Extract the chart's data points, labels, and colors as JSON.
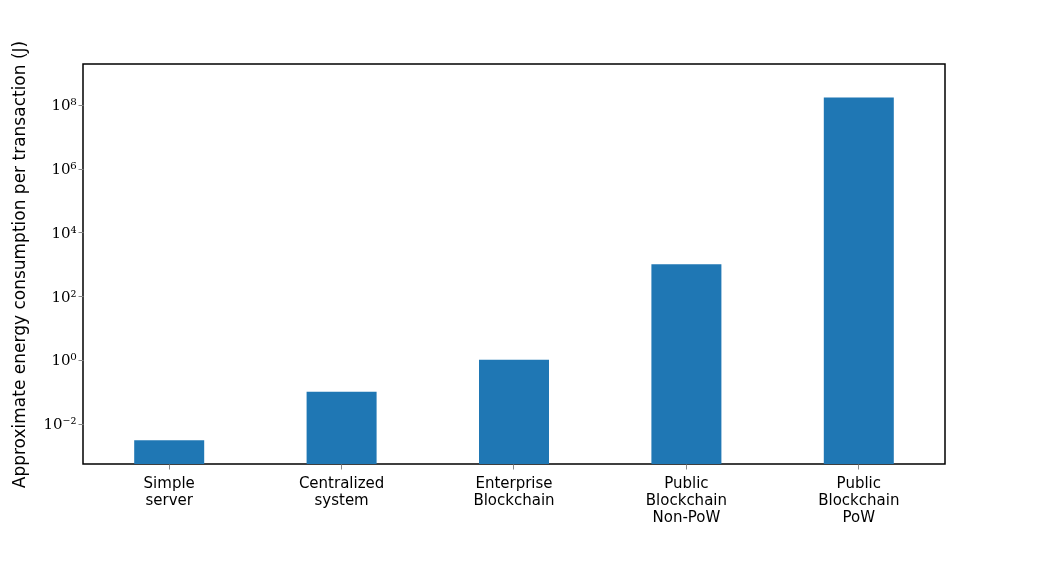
{
  "chart_data": {
    "type": "bar",
    "ylabel": "Approximate energy consumption per transaction (J)",
    "categories": [
      "Simple server",
      "Centralized system",
      "Enterprise Blockchain",
      "Public Blockchain Non-PoW",
      "Public Blockchain PoW"
    ],
    "values": [
      0.003,
      0.1,
      1,
      1000,
      170000000
    ],
    "color": "#1f77b4",
    "log": true,
    "ylim": [
      0.00054,
      1900000000
    ],
    "yticks": [
      {
        "value": 0.01,
        "label": "10⁻²"
      },
      {
        "value": 1,
        "label": "10⁰"
      },
      {
        "value": 100,
        "label": "10²"
      },
      {
        "value": 10000,
        "label": "10⁴"
      },
      {
        "value": 1000000,
        "label": "10⁶"
      },
      {
        "value": 100000000,
        "label": "10⁸"
      }
    ],
    "grid": false
  }
}
